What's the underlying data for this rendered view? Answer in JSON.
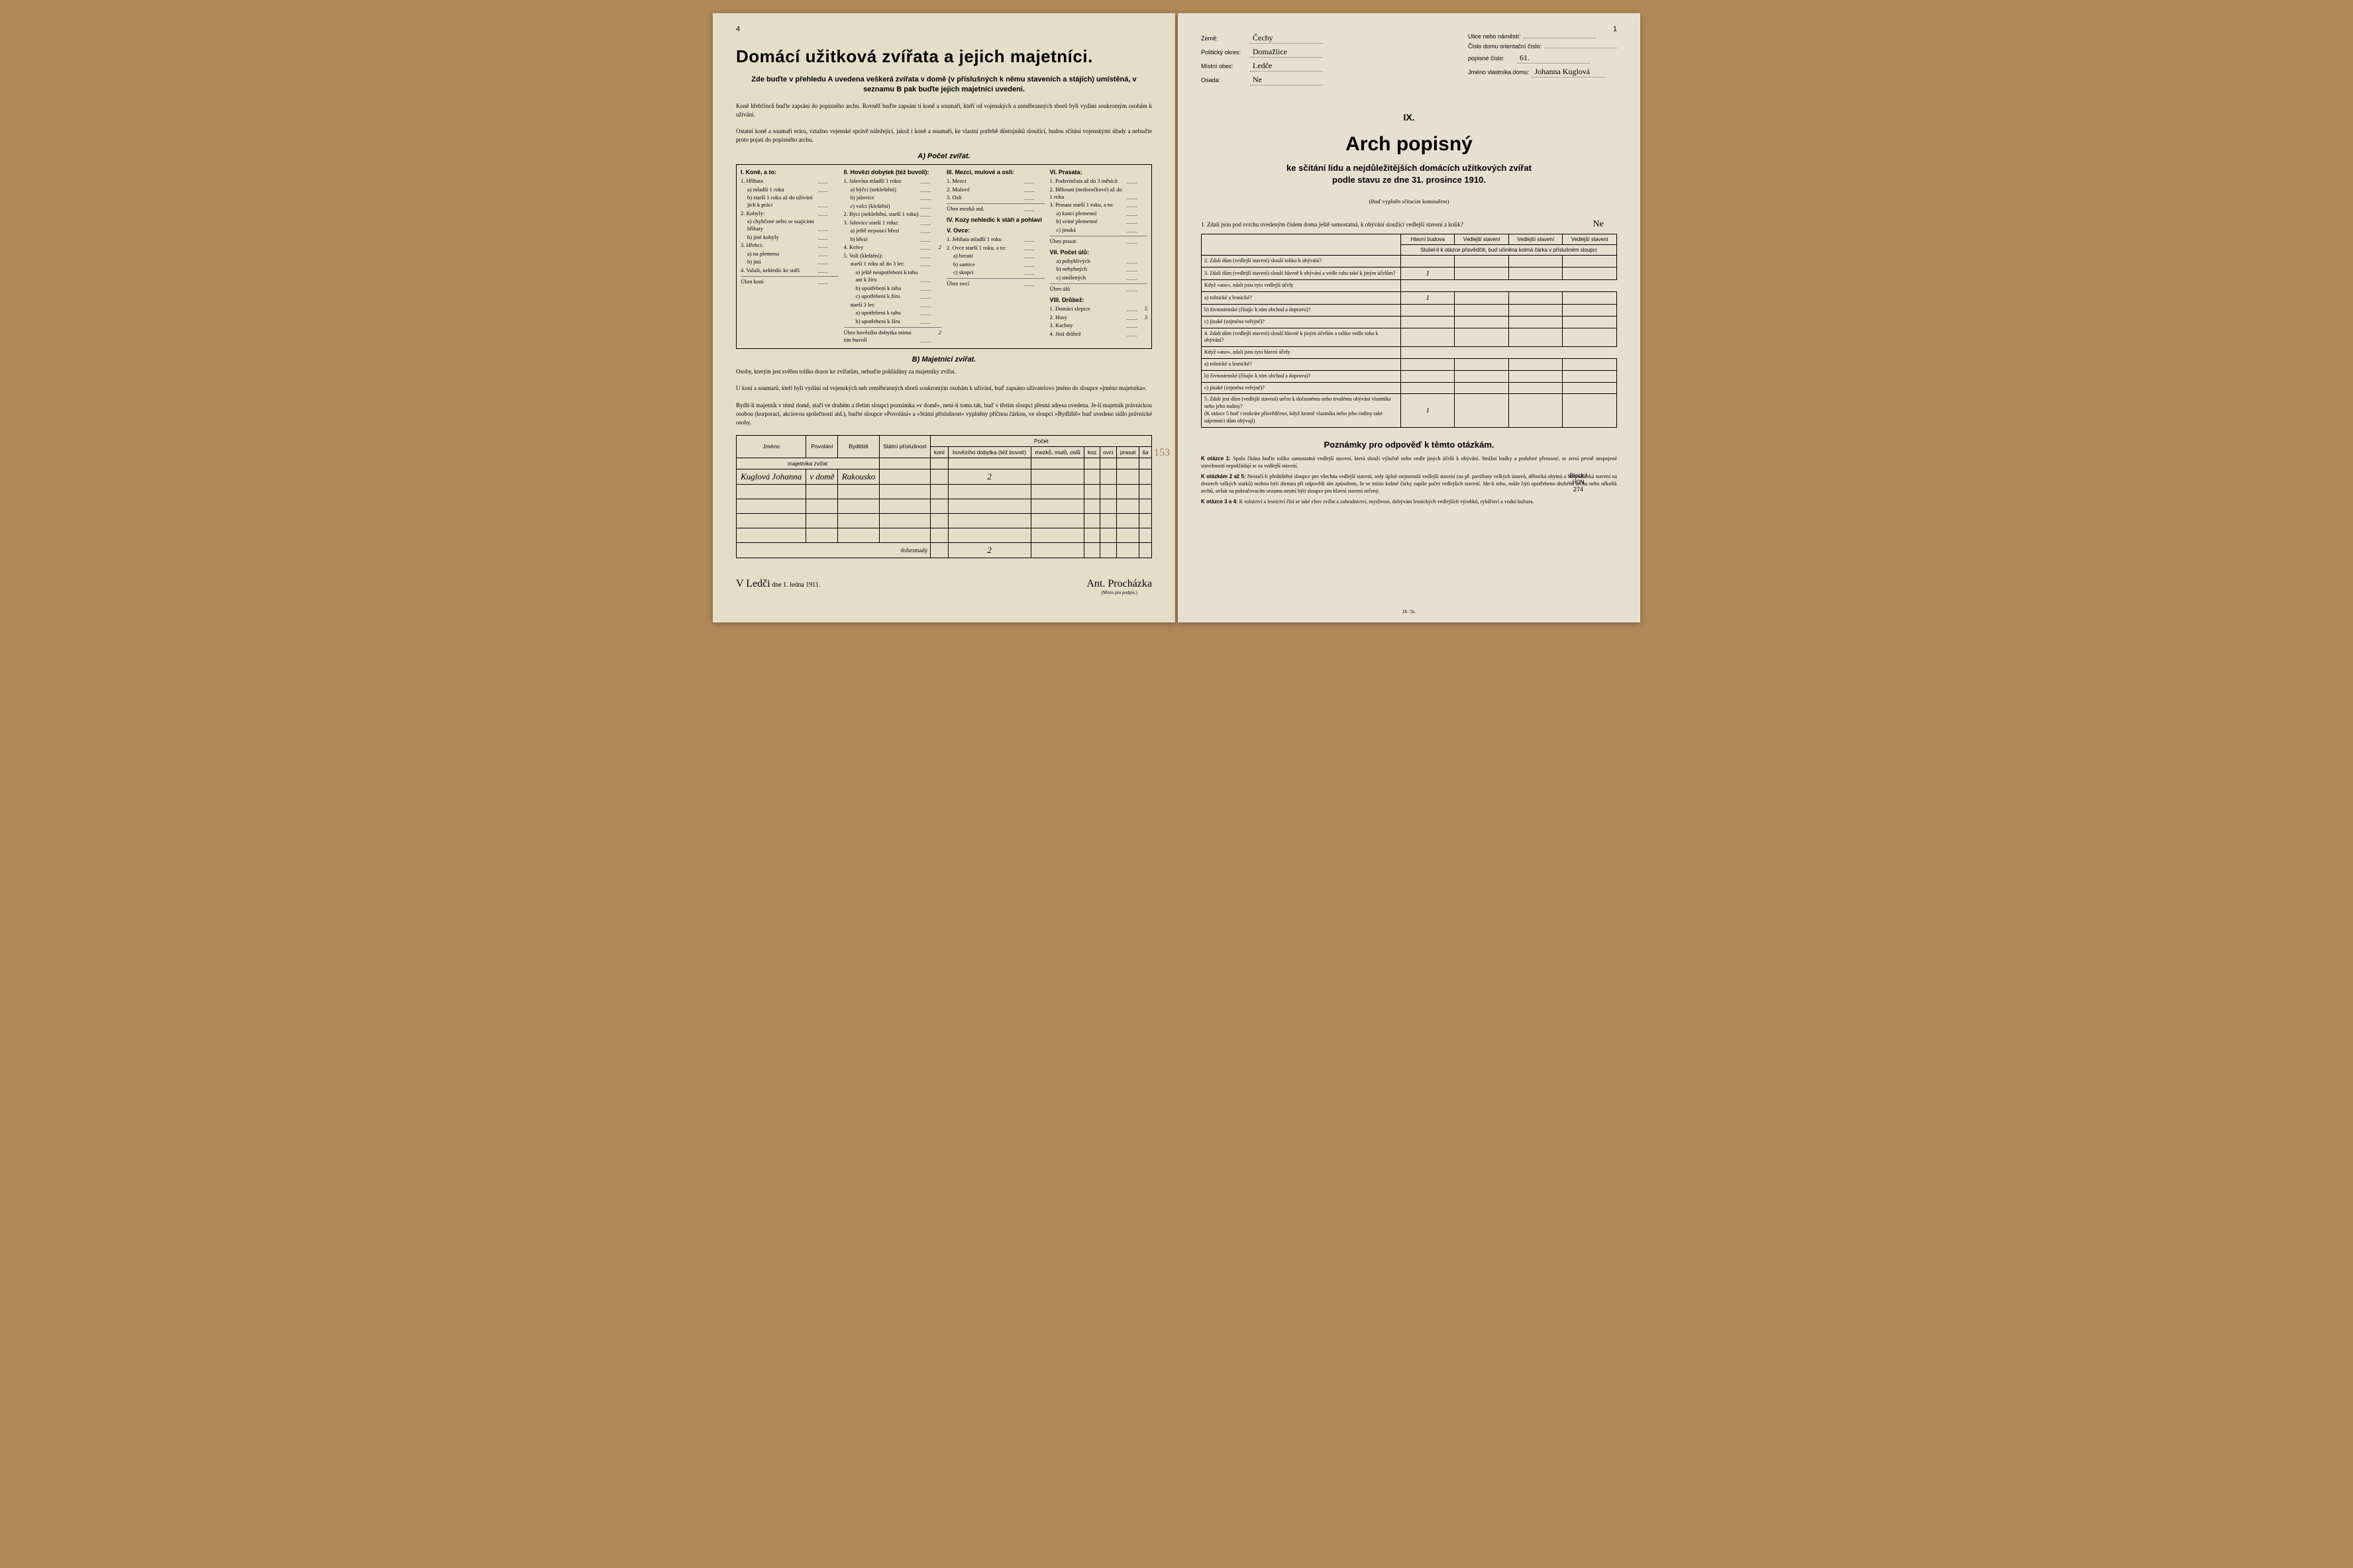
{
  "left": {
    "page_num": "4",
    "title": "Domácí užitková zvířata a jejich majetníci.",
    "subtitle": "Zde buďte v přehledu A uvedena veškerá zvířata v domě (v příslušných k němu staveních a stájích) umístěná, v seznamu B pak buďte jejich majetníci uvedeni.",
    "fine1": "Koně hřebčinců buďte zapsáni do popisného archu. Rovněž buďte zapsáni ti koně a soumaři, kteří od vojenských a zeměbranných sborů byli vydáni soukromým osobám k užívání.",
    "fine2": "Ostatní koně a soumaři eráru, vztažno vojenské správě náležející, jakož i koně a soumaři, ke vlastní potřebě důstojníků sloužící, budou sčítáni vojenskými úřady a nebuďte proto pojati do popisného archu.",
    "sectionA": "A) Počet zvířat.",
    "sectionB": "B) Majetníci zvířat.",
    "fineB1": "Osoby, kterým jest svěřen toliko dozor ke zvířatům, nebuďte pokládány za majetníky zvířat.",
    "fineB2": "U koní a soumarů, kteří byli vydáni od vojenských neb zeměbranných sborů soukromým osobám k užívání, buď zapsáno uživatelovo jméno do sloupce »jméno majetníka«.",
    "fineB3": "Bydlí-li majetník v témž domě, stačí ve druhém a třetím sloupci poznámka »v domě«, není-li tomu tak, buď v třetím sloupci přesná adresa uvedena. Je-li majetník právnickou osobou (korporací, akciovou společností atd.), buďte sloupce »Povolání« a »Státní příslušnost« vyplněny příčnou čárkou, ve sloupci »Bydliště« buď uvedeno sídlo právnické osoby.",
    "animals": {
      "col1_h": "I. Koně, a to:",
      "c1": [
        {
          "l": "1. Hříbata",
          "i": 0
        },
        {
          "l": "a) mladší 1 roku",
          "i": 1
        },
        {
          "l": "b) starší 1 roku až do užívání jich k práci",
          "i": 1
        },
        {
          "l": "2. Kobyly:",
          "i": 0
        },
        {
          "l": "a) chybčené nebo se ssajícími hříbaty",
          "i": 1
        },
        {
          "l": "b) jiné kobyly",
          "i": 1
        },
        {
          "l": "3. Hřebci:",
          "i": 0
        },
        {
          "l": "a) na plemeno",
          "i": 1
        },
        {
          "l": "b) jiní",
          "i": 1
        },
        {
          "l": "4. Valaši, nehledíc ke stáří",
          "i": 0
        }
      ],
      "c1_total": "Úhrn koní",
      "col2_h": "II. Hovězí dobytek (též buvoli):",
      "c2": [
        {
          "l": "1. Jalovína mladší 1 roku:",
          "i": 0
        },
        {
          "l": "a) býčci (nekleštění)",
          "i": 1
        },
        {
          "l": "b) jalovice",
          "i": 1
        },
        {
          "l": "c) volci (kleštění)",
          "i": 1
        },
        {
          "l": "2. Býci (nekleštění, starší 1 roku)",
          "i": 0
        },
        {
          "l": "3. Jalovice starší 1 roku:",
          "i": 0
        },
        {
          "l": "a) ještě nejsoucí březí",
          "i": 1
        },
        {
          "l": "b) březí",
          "i": 1
        },
        {
          "l": "4. Krávy",
          "i": 0,
          "v": "2"
        },
        {
          "l": "5. Voli (kleštění):",
          "i": 0
        },
        {
          "l": "starší 1 roku až do 3 let:",
          "i": 1
        },
        {
          "l": "a) ještě neupotřebení k tahu ani k žíru",
          "i": 2
        },
        {
          "l": "b) upotřebení k tahu",
          "i": 2
        },
        {
          "l": "c) upotřebení k žíru",
          "i": 2
        },
        {
          "l": "starší 3 let:",
          "i": 1
        },
        {
          "l": "a) upotřebení k tahu",
          "i": 2
        },
        {
          "l": "b) upotřebení k žíru",
          "i": 2
        }
      ],
      "c2_total": "Úhrn hovězího dobytka mimo tím buvolí",
      "c2_total_v": "2",
      "col3_h": "III. Mezci, mulové a osli:",
      "c3": [
        {
          "l": "1. Mezci",
          "i": 0
        },
        {
          "l": "2. Mulové",
          "i": 0
        },
        {
          "l": "3. Osli",
          "i": 0
        }
      ],
      "c3_total": "Úhrn mezků atd.",
      "col4_h": "IV. Kozy nehledíc k stáří a pohlaví",
      "col5_h": "V. Ovce:",
      "c5": [
        {
          "l": "1. Jehňata mladší 1 roku",
          "i": 0
        },
        {
          "l": "2. Ovce starší 1 roku, a to:",
          "i": 0
        },
        {
          "l": "a) berani",
          "i": 1
        },
        {
          "l": "b) samice",
          "i": 1
        },
        {
          "l": "c) skopci",
          "i": 1
        }
      ],
      "c5_total": "Úhrn ovcí",
      "col6_h": "VI. Prasata:",
      "c6": [
        {
          "l": "1. Podsvinčata až do 3 měsíců",
          "i": 0
        },
        {
          "l": "2. Běhouni (nedoročkové) až do 1 roku",
          "i": 0
        },
        {
          "l": "3. Prasata starší 1 roku, a to:",
          "i": 0
        },
        {
          "l": "a) kanci plemenní",
          "i": 1
        },
        {
          "l": "b) sviné plemenné",
          "i": 1
        },
        {
          "l": "c) jinaká",
          "i": 1
        }
      ],
      "c6_total": "Úhrn prasat",
      "col7_h": "VII. Počet úlů:",
      "c7": [
        {
          "l": "a) pohyblivých",
          "i": 1
        },
        {
          "l": "b) nehybných",
          "i": 1
        },
        {
          "l": "c) smíšených",
          "i": 1
        }
      ],
      "c7_total": "Úhrn úlů",
      "col8_h": "VIII. Drůbež:",
      "c8": [
        {
          "l": "1. Domácí slepice",
          "i": 0,
          "v": "5"
        },
        {
          "l": "2. Husy",
          "i": 0,
          "v": "3"
        },
        {
          "l": "3. Kachny",
          "i": 0
        },
        {
          "l": "4. Jiná drůbež",
          "i": 0
        }
      ]
    },
    "owners": {
      "headers": {
        "jmeno": "Jméno",
        "povolani": "Povolání",
        "bydliste": "Bydliště",
        "statni": "Státní příslušnost",
        "pocet": "Počet",
        "sub": "majetníka zvířat",
        "koni": "koní",
        "hov": "hovězího dobytka (též buvolí)",
        "mezku": "mezků, mulů, oslů",
        "koz": "koz",
        "ovci": "ovcí",
        "prasat": "prasat",
        "sa": "ša"
      },
      "row1": {
        "jmeno": "Kuglová Johanna",
        "povolani": "v domě",
        "bydliste": "Rakousko",
        "hov": "2"
      },
      "margin_note": "153",
      "total_label": "dohromady",
      "total_hov": "2"
    },
    "sig_place": "V Ledči",
    "sig_date_label": "dne 1. ledna 1911.",
    "sig_name": "Ant. Procházka",
    "sig_under": "(Místo pro podpis.)"
  },
  "right": {
    "page_num": "1",
    "fields_left": [
      {
        "l": "Země:",
        "v": "Čechy"
      },
      {
        "l": "Politický okres:",
        "v": "Domažlice"
      },
      {
        "l": "Místní obec:",
        "v": "Ledče"
      },
      {
        "l": "Osada:",
        "v": "Ne"
      }
    ],
    "fields_right": [
      {
        "l": "Ulice nebo náměstí:",
        "v": ""
      },
      {
        "l": "Číslo domu",
        "l2": "orientační číslo:",
        "v": ""
      },
      {
        "l": "",
        "l2": "popisné číslo:",
        "v": "61."
      },
      {
        "l": "Jméno vlastníka domu:",
        "v": "Johanna Kuglová"
      }
    ],
    "roman": "IX.",
    "arch_title": "Arch popisný",
    "arch_sub1": "ke sčítání lidu a nejdůležitějších domácích užitkových zvířat",
    "arch_sub2": "podle stavu ze dne 31. prosince 1910.",
    "arch_note": "(Buď vyplněn sčítacím komisařem)",
    "q1": "1. Zdali jsou pod svrchu uvedeným číslem domu ještě samostatná, k obývání sloužící vedlejší stavení a kolik?",
    "q1_ans": "Ne",
    "qt_headers": [
      "Hlavní budova",
      "Vedlejší stavení",
      "Vedlejší stavení",
      "Vedlejší stavení"
    ],
    "qt_note": "Slušel-li k otázce přisvědčiti, buď učiněna kolmá čárka v příslušném sloupci",
    "questions": [
      {
        "t": "2. Zdali dům (vedlejší stavení) slouží toliko k obývání?",
        "v": [
          "",
          "",
          "",
          ""
        ]
      },
      {
        "t": "3. Zdali dům (vedlejší stavení) slouží hlavně k obývání a vedle toho také k jiným účelům?",
        "v": [
          "1",
          "",
          "",
          ""
        ]
      },
      {
        "t": "Když »ano«, zdali jsou tyto vedlejší účely",
        "sub": true,
        "v": null
      },
      {
        "t": "a) rolnické a lesnické?",
        "sub": true,
        "v": [
          "1",
          "",
          "",
          ""
        ]
      },
      {
        "t": "b) živnostenské (čítajíc k nim obchod a dopravu)?",
        "sub": true,
        "v": [
          "",
          "",
          "",
          ""
        ]
      },
      {
        "t": "c) jinaké (zejména veřejné)?",
        "sub": true,
        "v": [
          "",
          "",
          "",
          ""
        ]
      },
      {
        "t": "4. Zdali dům (vedlejší stavení) slouží hlavně k jiným účelům a toliko vedle toho k obývání?",
        "v": [
          "",
          "",
          "",
          ""
        ]
      },
      {
        "t": "Když »ano«, zdali jsou tyto hlavní účely",
        "sub": true,
        "v": null
      },
      {
        "t": "a) rolnické a lesnické?",
        "sub": true,
        "v": [
          "",
          "",
          "",
          ""
        ]
      },
      {
        "t": "b) živnostenské (čítajíc k nim obchod a dopravu)?",
        "sub": true,
        "v": [
          "",
          "",
          "",
          ""
        ]
      },
      {
        "t": "c) jinaké (zejména veřejné)?",
        "sub": true,
        "v": [
          "",
          "",
          "",
          ""
        ]
      },
      {
        "t": "5. Zdali jest dům (vedlejší stavení) určen k dočasnému nebo trvalému obývání vlastníka nebo jeho rodiny?\n(K otázce 5 buď i tenkráte přisvědčeno, když kromě vlastníka nebo jeho rodiny také nájemníci dům obývají)",
        "v": [
          "1",
          "",
          "",
          ""
        ]
      }
    ],
    "stamp": {
      "l1": "Block I",
      "l2": "H0N",
      "l3": "274"
    },
    "notes_h": "Poznámky pro odpověď k těmto otázkám.",
    "notes": [
      {
        "b": "K otázce 1:",
        "t": " Spolu čítána buďte toliko samostatná vedlejší stavení, která slouží výlučně nebo vedle jiných účelů k obývání. Strážní budky a podobné přenosné, se zemí pevně nespojené stavebnosti nepokládají se za vedlejší stavení."
      },
      {
        "b": "K otázkám 2 až 5:",
        "t": " Nestačí-li předtištěné sloupce pro všechna vedlejší stavení, tedy úplně stejnorodá vedlejší stavení (na př. pavillony velkých ústavů, dělnická obytná a hospodářská stavení na dvorech velkých statků) mohou býti shrnuta při odpovědi tím způsobem, že se místo kolmé čárky zapíše počet vedlejších stavení. Jde-li toho, může býti upotřebeno druhého archu nebo několik archů, avšak na pokračovacím sezamu nesmí býti sloupce pro hlavní stavení určený."
      },
      {
        "b": "K otázce 3 a 4:",
        "t": " K rolnictví a lesnictví čítá se také chov zvířat a zahradnictví, myslivost, dobývání lesnických vedlejších výrobků, rybářství a vodní kultura."
      }
    ],
    "footer": "IX. 5h."
  }
}
